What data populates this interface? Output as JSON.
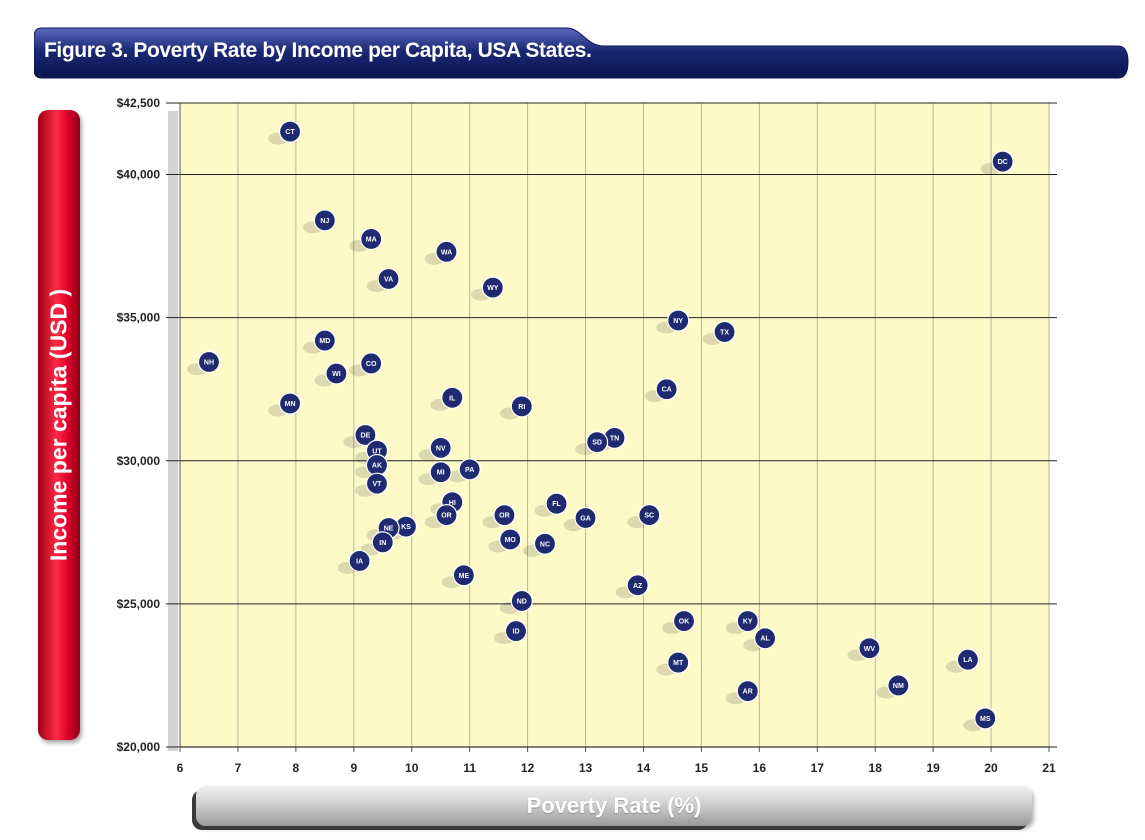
{
  "colors": {
    "plot_bg": "#fdfac8",
    "gridline": "#b5b5a3",
    "hline": "#222222",
    "marker_fill": "#1f2a70",
    "marker_stroke": "#ffffff",
    "title_bar": "#1b2873",
    "ylabel_bar": "#e0002a",
    "xlabel_bar": "#bdbdbd"
  },
  "chart_data": {
    "type": "scatter",
    "title": "Figure 3. Poverty Rate by Income per Capita, USA States.",
    "xlabel": "Poverty Rate (%)",
    "ylabel": "Income per capita (USD )",
    "xlim": [
      6,
      21
    ],
    "ylim": [
      20000,
      42500
    ],
    "x_ticks": [
      6,
      7,
      8,
      9,
      10,
      11,
      12,
      13,
      14,
      15,
      16,
      17,
      18,
      19,
      20,
      21
    ],
    "y_ticks": [
      20000,
      25000,
      30000,
      35000,
      40000,
      42500
    ],
    "y_tick_labels": [
      "$20,000",
      "$25,000",
      "$30,000",
      "$35,000",
      "$40,000",
      "$42,500"
    ],
    "grid": true,
    "points": [
      {
        "label": "CT",
        "x": 7.9,
        "y": 41500
      },
      {
        "label": "DC",
        "x": 20.2,
        "y": 40450
      },
      {
        "label": "NJ",
        "x": 8.5,
        "y": 38400
      },
      {
        "label": "MA",
        "x": 9.3,
        "y": 37750
      },
      {
        "label": "WA",
        "x": 10.6,
        "y": 37300
      },
      {
        "label": "VA",
        "x": 9.6,
        "y": 36350
      },
      {
        "label": "WY",
        "x": 11.4,
        "y": 36050
      },
      {
        "label": "NY",
        "x": 14.6,
        "y": 34900
      },
      {
        "label": "TX",
        "x": 15.4,
        "y": 34500
      },
      {
        "label": "MD",
        "x": 8.5,
        "y": 34200
      },
      {
        "label": "NH",
        "x": 6.5,
        "y": 33450
      },
      {
        "label": "CO",
        "x": 9.3,
        "y": 33400
      },
      {
        "label": "WI",
        "x": 8.7,
        "y": 33050
      },
      {
        "label": "CA",
        "x": 14.4,
        "y": 32500
      },
      {
        "label": "IL",
        "x": 10.7,
        "y": 32200
      },
      {
        "label": "MN",
        "x": 7.9,
        "y": 32000
      },
      {
        "label": "RI",
        "x": 11.9,
        "y": 31900
      },
      {
        "label": "DE",
        "x": 9.2,
        "y": 30900
      },
      {
        "label": "TN",
        "x": 13.5,
        "y": 30800
      },
      {
        "label": "SD",
        "x": 13.2,
        "y": 30650
      },
      {
        "label": "NV",
        "x": 10.5,
        "y": 30450
      },
      {
        "label": "UT",
        "x": 9.4,
        "y": 30350
      },
      {
        "label": "AK",
        "x": 9.4,
        "y": 29850
      },
      {
        "label": "PA",
        "x": 11.0,
        "y": 29700
      },
      {
        "label": "MI",
        "x": 10.5,
        "y": 29600
      },
      {
        "label": "VT",
        "x": 9.4,
        "y": 29200
      },
      {
        "label": "FL",
        "x": 12.5,
        "y": 28500
      },
      {
        "label": "HI",
        "x": 10.7,
        "y": 28550
      },
      {
        "label": "OR",
        "x": 10.6,
        "y": 28100
      },
      {
        "label": "OR",
        "x": 11.6,
        "y": 28100
      },
      {
        "label": "SC",
        "x": 14.1,
        "y": 28100
      },
      {
        "label": "GA",
        "x": 13.0,
        "y": 28000
      },
      {
        "label": "KS",
        "x": 9.9,
        "y": 27700
      },
      {
        "label": "NE",
        "x": 9.6,
        "y": 27650
      },
      {
        "label": "MO",
        "x": 11.7,
        "y": 27250
      },
      {
        "label": "IN",
        "x": 9.5,
        "y": 27150
      },
      {
        "label": "NC",
        "x": 12.3,
        "y": 27100
      },
      {
        "label": "IA",
        "x": 9.1,
        "y": 26500
      },
      {
        "label": "ME",
        "x": 10.9,
        "y": 26000
      },
      {
        "label": "AZ",
        "x": 13.9,
        "y": 25650
      },
      {
        "label": "ND",
        "x": 11.9,
        "y": 25100
      },
      {
        "label": "KY",
        "x": 15.8,
        "y": 24400
      },
      {
        "label": "OK",
        "x": 14.7,
        "y": 24400
      },
      {
        "label": "ID",
        "x": 11.8,
        "y": 24050
      },
      {
        "label": "AL",
        "x": 16.1,
        "y": 23800
      },
      {
        "label": "WV",
        "x": 17.9,
        "y": 23450
      },
      {
        "label": "MT",
        "x": 14.6,
        "y": 22950
      },
      {
        "label": "LA",
        "x": 19.6,
        "y": 23050
      },
      {
        "label": "NM",
        "x": 18.4,
        "y": 22150
      },
      {
        "label": "AR",
        "x": 15.8,
        "y": 21950
      },
      {
        "label": "MS",
        "x": 19.9,
        "y": 21000
      }
    ]
  }
}
